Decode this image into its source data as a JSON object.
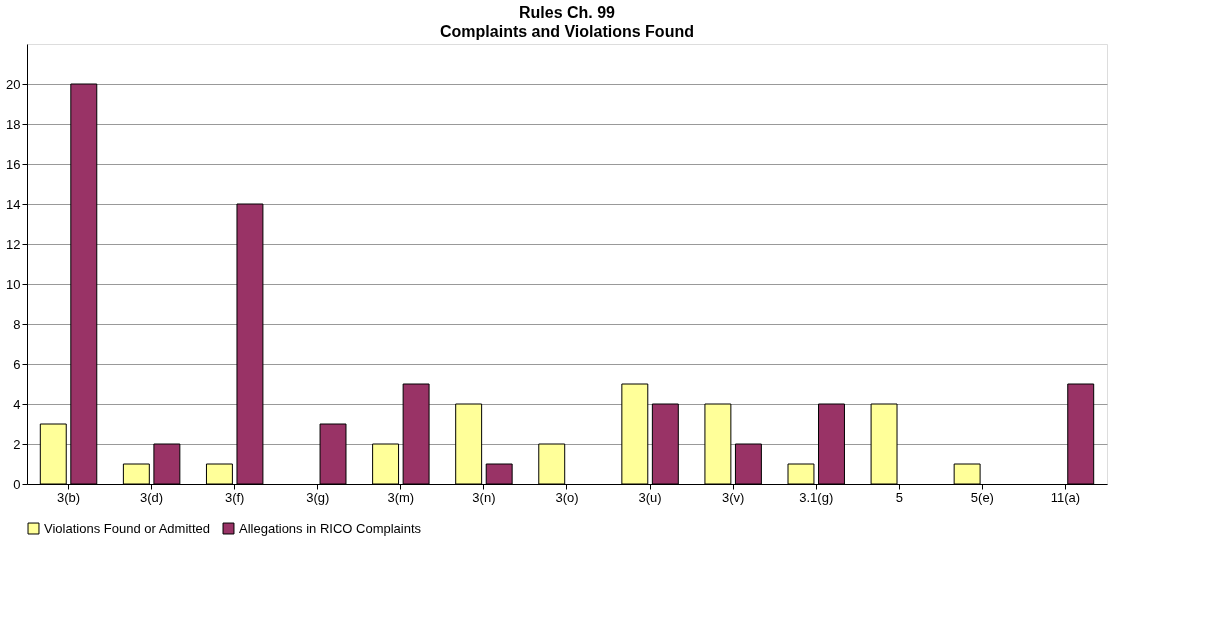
{
  "chart_data": {
    "type": "bar",
    "title": "Rules Ch. 99",
    "subtitle": "Complaints and Violations Found",
    "categories": [
      "3(b)",
      "3(d)",
      "3(f)",
      "3(g)",
      "3(m)",
      "3(n)",
      "3(o)",
      "3(u)",
      "3(v)",
      "3.1(g)",
      "5",
      "5(e)",
      "11(a)"
    ],
    "series": [
      {
        "name": "Violations Found or Admitted",
        "color": "#ffff99",
        "values": [
          3,
          1,
          1,
          null,
          2,
          4,
          2,
          5,
          4,
          1,
          4,
          1,
          null
        ]
      },
      {
        "name": "Allegations in RICO Complaints",
        "color": "#993366",
        "values": [
          20,
          2,
          14,
          3,
          5,
          1,
          null,
          4,
          2,
          4,
          null,
          null,
          5
        ]
      }
    ],
    "ylim": [
      0,
      22
    ],
    "yticks": [
      0,
      2,
      4,
      6,
      8,
      10,
      12,
      14,
      16,
      18,
      20
    ],
    "grid": "y",
    "legend": "bottom"
  }
}
